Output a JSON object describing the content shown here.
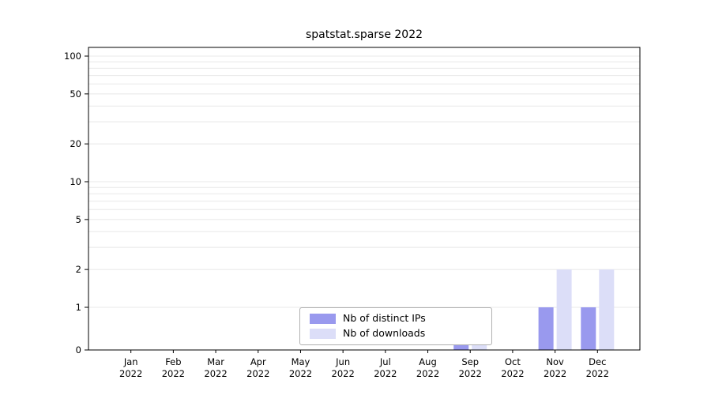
{
  "chart_data": {
    "type": "bar",
    "title": "spatstat.sparse 2022",
    "months": [
      "Jan",
      "Feb",
      "Mar",
      "Apr",
      "May",
      "Jun",
      "Jul",
      "Aug",
      "Sep",
      "Oct",
      "Nov",
      "Dec"
    ],
    "year": "2022",
    "series": [
      {
        "name": "Nb of distinct IPs",
        "color": "#9999ee",
        "values": [
          0,
          0,
          0,
          0,
          0,
          0,
          0,
          0,
          1,
          0,
          1,
          1
        ]
      },
      {
        "name": "Nb of downloads",
        "color": "#dcdef8",
        "values": [
          0,
          0,
          0,
          0,
          0,
          0,
          0,
          0,
          1,
          0,
          2,
          2
        ]
      }
    ],
    "yticks": [
      0,
      1,
      2,
      5,
      10,
      20,
      50,
      100
    ],
    "ylim": [
      0,
      117
    ],
    "yscale": "log (0 pinned at baseline)",
    "grid": "horizontal log minor gridlines",
    "gridline_color": "#e8e8e8",
    "axis_color": "#000000",
    "legend_position": "inside bottom-center"
  }
}
